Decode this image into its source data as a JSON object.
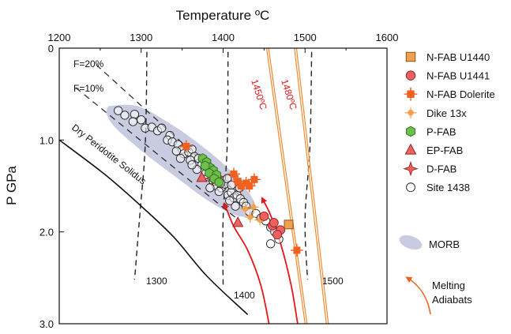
{
  "chart_data": {
    "type": "scatter",
    "xlabel": "Temperature ºC",
    "ylabel": "P GPa",
    "xlim": [
      1200,
      1600
    ],
    "ylim": [
      3.0,
      0
    ],
    "x_ticks": [
      "1200",
      "1300",
      "1400",
      "1500",
      "1600"
    ],
    "y_ticks": [
      "0",
      "1.0",
      "2.0",
      "3.0"
    ],
    "x_tick_values": [
      1200,
      1300,
      1400,
      1500,
      1600
    ],
    "y_tick_values": [
      0,
      1.0,
      2.0,
      3.0
    ],
    "legend_position": "right",
    "series": [
      {
        "name": "N-FAB U1440",
        "marker": "square",
        "color": "#f0a050",
        "points": [
          [
            1480,
            1.92
          ]
        ]
      },
      {
        "name": "N-FAB U1441",
        "marker": "circle",
        "color": "#f06060",
        "points": [
          [
            1450,
            1.83
          ],
          [
            1460,
            1.93
          ],
          [
            1470,
            1.98
          ],
          [
            1462,
            1.9
          ],
          [
            1466,
            2.03
          ]
        ]
      },
      {
        "name": "N-FAB Dolerite",
        "marker": "cross-square",
        "color": "#f06020",
        "points": [
          [
            1355,
            1.07
          ],
          [
            1413,
            1.37
          ],
          [
            1418,
            1.45
          ],
          [
            1422,
            1.5
          ],
          [
            1428,
            1.47
          ],
          [
            1432,
            1.5
          ],
          [
            1438,
            1.43
          ],
          [
            1490,
            2.2
          ]
        ]
      },
      {
        "name": "Dike 13x",
        "marker": "cross-circle",
        "color": "#f0a050",
        "points": [
          [
            1427,
            1.75
          ],
          [
            1437,
            1.73
          ],
          [
            1433,
            1.84
          ],
          [
            1445,
            1.87
          ]
        ]
      },
      {
        "name": "P-FAB",
        "marker": "hexagon",
        "color": "#6cbf4a",
        "points": [
          [
            1375,
            1.2
          ],
          [
            1380,
            1.24
          ],
          [
            1384,
            1.3
          ],
          [
            1388,
            1.33
          ],
          [
            1383,
            1.36
          ],
          [
            1392,
            1.38
          ],
          [
            1389,
            1.42
          ],
          [
            1378,
            1.28
          ],
          [
            1395,
            1.46
          ]
        ]
      },
      {
        "name": "EP-FAB",
        "marker": "triangle",
        "color": "#f06060",
        "points": [
          [
            1374,
            1.41
          ],
          [
            1418,
            1.9
          ]
        ]
      },
      {
        "name": "D-FAB",
        "marker": "star",
        "color": "#f06060",
        "points": [
          [
            1387,
            1.42
          ],
          [
            1393,
            1.4
          ]
        ]
      },
      {
        "name": "Site 1438",
        "marker": "open-circle",
        "color": "#ffffff",
        "points": [
          [
            1272,
            0.68
          ],
          [
            1280,
            0.73
          ],
          [
            1292,
            0.72
          ],
          [
            1290,
            0.8
          ],
          [
            1300,
            0.78
          ],
          [
            1305,
            0.87
          ],
          [
            1313,
            0.86
          ],
          [
            1320,
            0.9
          ],
          [
            1325,
            0.87
          ],
          [
            1335,
            0.95
          ],
          [
            1332,
            1.0
          ],
          [
            1338,
            1.02
          ],
          [
            1345,
            1.05
          ],
          [
            1350,
            1.1
          ],
          [
            1352,
            1.15
          ],
          [
            1358,
            1.13
          ],
          [
            1362,
            1.1
          ],
          [
            1365,
            1.18
          ],
          [
            1360,
            1.22
          ],
          [
            1370,
            1.2
          ],
          [
            1374,
            1.27
          ],
          [
            1368,
            1.32
          ],
          [
            1378,
            1.37
          ],
          [
            1382,
            1.4
          ],
          [
            1388,
            1.45
          ],
          [
            1392,
            1.5
          ],
          [
            1398,
            1.52
          ],
          [
            1402,
            1.48
          ],
          [
            1395,
            1.56
          ],
          [
            1406,
            1.6
          ],
          [
            1410,
            1.57
          ],
          [
            1413,
            1.63
          ],
          [
            1417,
            1.6
          ],
          [
            1421,
            1.64
          ],
          [
            1425,
            1.68
          ],
          [
            1428,
            1.72
          ],
          [
            1415,
            1.72
          ],
          [
            1432,
            1.78
          ],
          [
            1440,
            1.8
          ],
          [
            1446,
            1.85
          ],
          [
            1452,
            1.88
          ],
          [
            1458,
            1.95
          ],
          [
            1463,
            2.0
          ],
          [
            1468,
            2.08
          ],
          [
            1458,
            2.13
          ],
          [
            1405,
            1.42
          ],
          [
            1410,
            1.49
          ],
          [
            1397,
            1.47
          ],
          [
            1384,
            1.52
          ],
          [
            1408,
            1.66
          ],
          [
            1420,
            1.52
          ],
          [
            1362,
            1.27
          ],
          [
            1348,
            1.2
          ],
          [
            1343,
            1.12
          ]
        ]
      }
    ],
    "annotations": [
      "F=20%",
      "F=10%",
      "Dry Peridotite Solidus",
      "1450ºC",
      "1480ºC",
      "1300",
      "1400",
      "1500",
      "MORB",
      "Melting",
      "Adiabats"
    ],
    "region": {
      "name": "MORB",
      "color": "#c9cce0",
      "points": [
        [
          1260,
          0.63
        ],
        [
          1295,
          0.63
        ],
        [
          1335,
          0.82
        ],
        [
          1372,
          1.05
        ],
        [
          1405,
          1.3
        ],
        [
          1432,
          1.58
        ],
        [
          1440,
          1.78
        ],
        [
          1420,
          1.83
        ],
        [
          1385,
          1.68
        ],
        [
          1345,
          1.42
        ],
        [
          1305,
          1.15
        ],
        [
          1270,
          0.88
        ],
        [
          1258,
          0.72
        ]
      ]
    },
    "solidus": [
      [
        1200,
        1.0
      ],
      [
        1255,
        1.37
      ],
      [
        1300,
        1.72
      ],
      [
        1340,
        2.06
      ],
      [
        1380,
        2.48
      ],
      [
        1430,
        2.9
      ]
    ],
    "isopleths": [
      {
        "label": "F=20%",
        "points": [
          [
            1245,
            0.18
          ],
          [
            1420,
            1.6
          ]
        ]
      },
      {
        "label": "F=10%",
        "points": [
          [
            1220,
            0.43
          ],
          [
            1420,
            1.88
          ]
        ]
      }
    ],
    "isotherms": [
      {
        "label": "1300",
        "points": [
          [
            1307,
            0.04
          ],
          [
            1305,
            1.05
          ],
          [
            1298,
            1.85
          ],
          [
            1292,
            2.52
          ]
        ]
      },
      {
        "label": "1400",
        "points": [
          [
            1406,
            0.04
          ],
          [
            1405,
            1.05
          ],
          [
            1400,
            1.85
          ],
          [
            1400,
            2.6
          ]
        ]
      },
      {
        "label": "1500",
        "points": [
          [
            1508,
            0.04
          ],
          [
            1506,
            1.05
          ],
          [
            1500,
            1.85
          ],
          [
            1503,
            2.52
          ]
        ]
      }
    ],
    "adiabats": [
      {
        "label": "1450ºC",
        "points": [
          [
            1453,
            0.0
          ],
          [
            1500,
            3.0
          ]
        ]
      },
      {
        "label": "1480ºC",
        "points": [
          [
            1487,
            0.0
          ],
          [
            1526,
            3.0
          ]
        ]
      }
    ],
    "melting_adiabats": [
      [
        [
          1456,
          3.0
        ],
        [
          1446,
          2.58
        ],
        [
          1430,
          2.2
        ],
        [
          1413,
          1.94
        ],
        [
          1402,
          1.7
        ]
      ],
      [
        [
          1491,
          3.0
        ],
        [
          1483,
          2.58
        ],
        [
          1470,
          2.12
        ],
        [
          1458,
          1.82
        ],
        [
          1448,
          1.64
        ]
      ]
    ],
    "colors": {
      "axis": "#111111",
      "dashed": "#222222",
      "adiabat": "#f08a30",
      "melting": "#e01818",
      "adiabat_label": "#e01818"
    }
  }
}
